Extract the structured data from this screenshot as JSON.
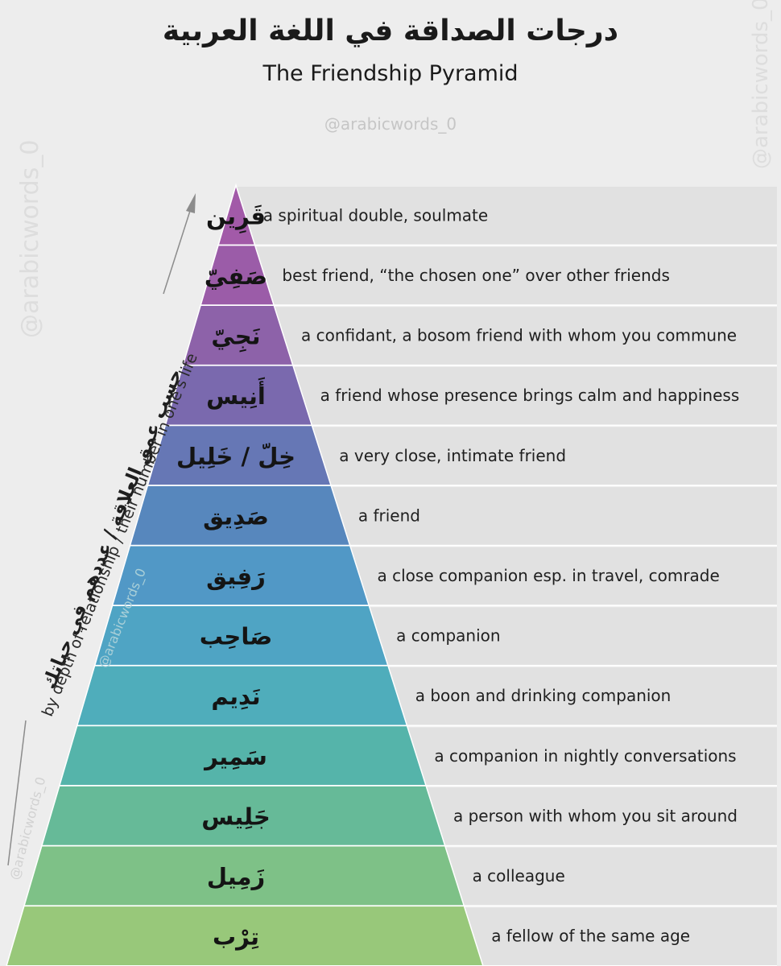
{
  "title_arabic": "درجات الصداقة في اللغة العربية",
  "title_english": "The Friendship Pyramid",
  "handle": "@arabicwords_0",
  "axis_label_arabic": "حسب عمق العلاقة / عددهم في حياتك",
  "axis_label_english": "by depth of relationship / their number in one's life",
  "levels": [
    {
      "arabic": "قَرِين",
      "english": "a spiritual double, soulmate",
      "color": "#a25aa8"
    },
    {
      "arabic": "صَفِيّ",
      "english": "best friend, “the chosen one” over other friends",
      "color": "#9b5ca8"
    },
    {
      "arabic": "نَجِيّ",
      "english": "a confidant, a bosom friend with whom you commune",
      "color": "#8d62a9"
    },
    {
      "arabic": "أَنِيس",
      "english": "a friend whose presence brings calm and happiness",
      "color": "#7a69ae"
    },
    {
      "arabic": "خِلّ / خَلِيل",
      "english": "a very close, intimate friend",
      "color": "#6677b5"
    },
    {
      "arabic": "صَدِيق",
      "english": "a friend",
      "color": "#5787bd"
    },
    {
      "arabic": "رَفِيق",
      "english": "a close companion esp. in travel, comrade",
      "color": "#5198c6"
    },
    {
      "arabic": "صَاحِب",
      "english": "a companion",
      "color": "#4fa4c4"
    },
    {
      "arabic": "نَدِيم",
      "english": "a boon and drinking companion",
      "color": "#4fadbb"
    },
    {
      "arabic": "سَمِير",
      "english": "a companion in nightly conversations",
      "color": "#55b4aa"
    },
    {
      "arabic": "جَلِيس",
      "english": "a person with whom you sit around",
      "color": "#66ba98"
    },
    {
      "arabic": "زَمِيل",
      "english": "a colleague",
      "color": "#7ec187"
    },
    {
      "arabic": "تِرْب",
      "english": "a fellow of the same age",
      "color": "#98c87a"
    }
  ]
}
